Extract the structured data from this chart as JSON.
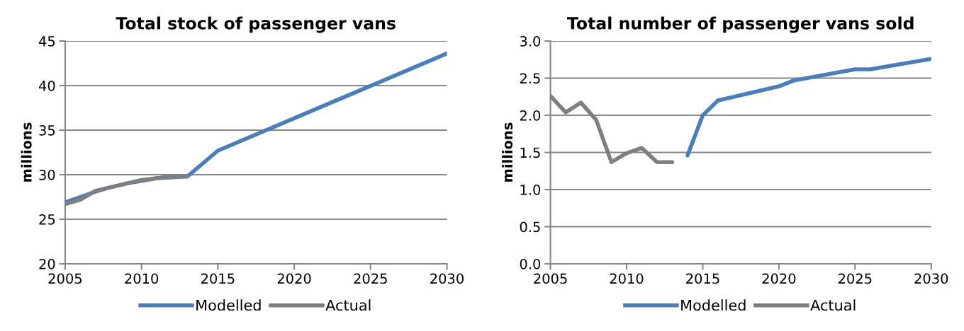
{
  "chart_data": [
    {
      "type": "line",
      "title": "Total stock of passenger vans",
      "ylabel": "millions",
      "xlim": [
        2005,
        2030
      ],
      "xticks": [
        2005,
        2010,
        2015,
        2020,
        2025,
        2030
      ],
      "ylim": [
        20,
        45
      ],
      "yticks": [
        20,
        25,
        30,
        35,
        40,
        45
      ],
      "grid": "y",
      "legend": "bottom",
      "line_style": "solid",
      "marker": "none",
      "series": [
        {
          "name": "Modelled",
          "color": "#4a7ebb",
          "x": [
            2005,
            2006,
            2007,
            2008,
            2009,
            2010,
            2011,
            2012,
            2013,
            2015,
            2030
          ],
          "values": [
            26.9,
            27.5,
            28.1,
            28.6,
            29.0,
            29.3,
            29.6,
            29.7,
            29.8,
            32.7,
            43.6
          ]
        },
        {
          "name": "Actual",
          "color": "#7f7f7f",
          "x": [
            2005,
            2006,
            2007,
            2008,
            2009,
            2010,
            2011,
            2012,
            2013
          ],
          "values": [
            26.7,
            27.2,
            28.2,
            28.6,
            29.0,
            29.4,
            29.6,
            29.8,
            29.8
          ]
        }
      ]
    },
    {
      "type": "line",
      "title": "Total number of passenger vans sold",
      "ylabel": "millions",
      "xlim": [
        2005,
        2030
      ],
      "xticks": [
        2005,
        2010,
        2015,
        2020,
        2025,
        2030
      ],
      "ylim": [
        0,
        3
      ],
      "yticks": [
        {
          "value": 0,
          "label": "0.0"
        },
        0.5,
        {
          "value": 1,
          "label": "1.0"
        },
        1.5,
        {
          "value": 2,
          "label": "2.0"
        },
        2.5,
        {
          "value": 3,
          "label": "3.0"
        }
      ],
      "grid": "y",
      "legend": "bottom",
      "line_style": "solid",
      "marker": "none",
      "series": [
        {
          "name": "Modelled",
          "color": "#4a7ebb",
          "x": [
            2014,
            2015,
            2016,
            2020,
            2021,
            2025,
            2026,
            2030
          ],
          "values": [
            1.46,
            2.0,
            2.2,
            2.39,
            2.47,
            2.62,
            2.62,
            2.76
          ]
        },
        {
          "name": "Actual",
          "color": "#7f7f7f",
          "x": [
            2005,
            2006,
            2007,
            2008,
            2009,
            2010,
            2011,
            2012,
            2013
          ],
          "values": [
            2.26,
            2.04,
            2.17,
            1.94,
            1.37,
            1.49,
            1.56,
            1.37,
            1.37
          ]
        }
      ]
    }
  ]
}
